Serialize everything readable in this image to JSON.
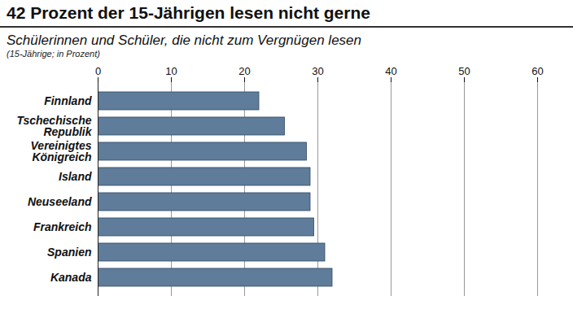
{
  "chart_data": {
    "type": "bar",
    "orientation": "horizontal",
    "title": "42 Prozent der 15-Jährigen lesen nicht gerne",
    "subtitle": "Schülerinnen und Schüler, die nicht zum Vergnügen lesen",
    "caption": "(15-Jährige; in Prozent)",
    "categories": [
      "Finnland",
      "Tschechische Republik",
      "Vereinigtes Königreich",
      "Island",
      "Neuseeland",
      "Frankreich",
      "Spanien",
      "Kanada"
    ],
    "values": [
      22,
      25.5,
      28.5,
      29,
      29,
      29.5,
      31,
      32
    ],
    "color": "#5f7d9b",
    "xlim": [
      0,
      60
    ],
    "xticks": [
      0,
      10,
      20,
      30,
      40,
      50,
      60
    ],
    "grid": true
  }
}
